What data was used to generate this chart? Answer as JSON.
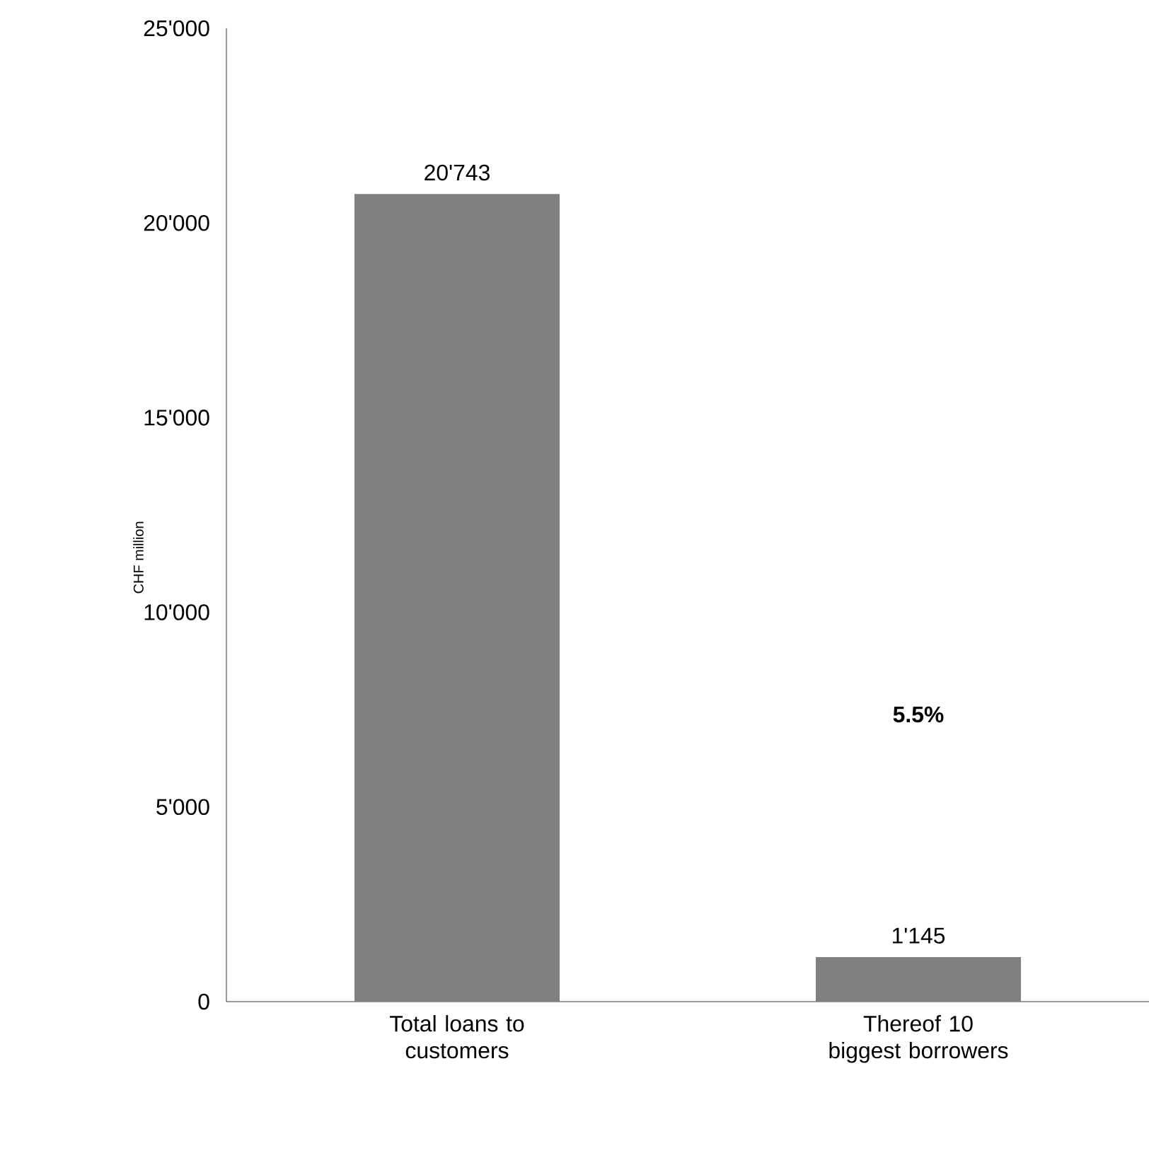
{
  "chart_data": {
    "type": "bar",
    "categories": [
      "Total loans to customers",
      "Thereof 10 biggest borrowers"
    ],
    "values": [
      20743,
      1145
    ],
    "value_labels": [
      "20'743",
      "1'145"
    ],
    "color": "#808080",
    "ylabel": "CHF million",
    "ylim": [
      0,
      25000
    ],
    "yticks": [
      {
        "value": 0,
        "label": "0"
      },
      {
        "value": 5000,
        "label": "5'000"
      },
      {
        "value": 10000,
        "label": "10'000"
      },
      {
        "value": 15000,
        "label": "15'000"
      },
      {
        "value": 20000,
        "label": "20'000"
      },
      {
        "value": 25000,
        "label": "25'000"
      }
    ],
    "annotations": [
      "5.5%"
    ],
    "grid": false
  }
}
